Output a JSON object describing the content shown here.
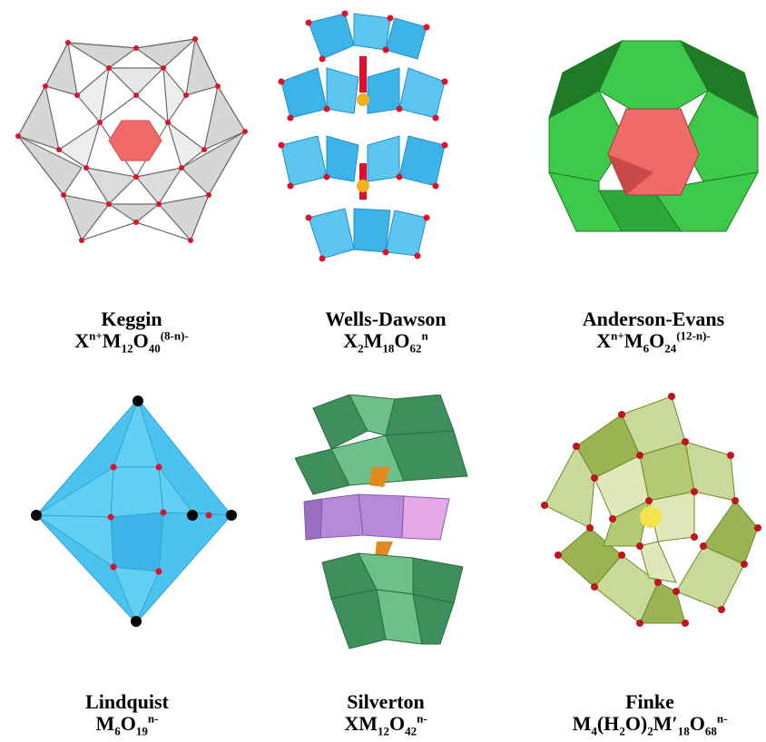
{
  "figure": {
    "structures": [
      {
        "name": "Keggin",
        "formula": [
          {
            "t": "X"
          },
          {
            "t": "n+",
            "s": "sup"
          },
          {
            "t": "M"
          },
          {
            "t": "12",
            "s": "sub"
          },
          {
            "t": "O"
          },
          {
            "t": "40",
            "s": "sub"
          },
          {
            "t": "(8-n)-",
            "s": "sup"
          }
        ],
        "colors": {
          "poly": "#d6d6d6",
          "center": "#f06a6a",
          "node": "#e0102a",
          "edge": "#6a6a6a"
        }
      },
      {
        "name": "Wells-Dawson",
        "formula": [
          {
            "t": "X"
          },
          {
            "t": "2",
            "s": "sub"
          },
          {
            "t": "M"
          },
          {
            "t": "18",
            "s": "sub"
          },
          {
            "t": "O"
          },
          {
            "t": "62",
            "s": "sub"
          },
          {
            "t": "n",
            "s": "sup"
          }
        ],
        "colors": {
          "poly": "#3cb4e8",
          "dark": "#1f8fc7",
          "node": "#e0102a",
          "hetero": "#f2b21d"
        }
      },
      {
        "name": "Anderson-Evans",
        "formula": [
          {
            "t": "X"
          },
          {
            "t": "n+",
            "s": "sup"
          },
          {
            "t": "M"
          },
          {
            "t": "6",
            "s": "sub"
          },
          {
            "t": "O"
          },
          {
            "t": "24",
            "s": "sub"
          },
          {
            "t": "(12-n)-",
            "s": "sup"
          }
        ],
        "colors": {
          "poly": "#3dc94a",
          "dark": "#1e7a25",
          "center": "#f06a6a"
        }
      },
      {
        "name": "Lindquist",
        "formula": [
          {
            "t": "M"
          },
          {
            "t": "6",
            "s": "sub"
          },
          {
            "t": "O"
          },
          {
            "t": "19",
            "s": "sub"
          },
          {
            "t": "n-",
            "s": "sup"
          }
        ],
        "colors": {
          "poly": "#4cc3ee",
          "dark": "#2aa6d8",
          "node": "#e0102a",
          "vertex": "#000000"
        }
      },
      {
        "name": "Silverton",
        "formula": [
          {
            "t": "XM"
          },
          {
            "t": "12",
            "s": "sub"
          },
          {
            "t": "O"
          },
          {
            "t": "42",
            "s": "sub"
          },
          {
            "t": "n-",
            "s": "sup"
          }
        ],
        "colors": {
          "poly": "#3f8f5c",
          "light": "#6fbf8a",
          "middle": "#b58ad9",
          "middle_light": "#e5a8e8",
          "hetero": "#e08a1e"
        }
      },
      {
        "name": "Finke",
        "formula": [
          {
            "t": "M"
          },
          {
            "t": "4",
            "s": "sub"
          },
          {
            "t": "(H"
          },
          {
            "t": "2",
            "s": "sub"
          },
          {
            "t": "O)"
          },
          {
            "t": "2",
            "s": "sub"
          },
          {
            "t": "M′"
          },
          {
            "t": "18",
            "s": "sub"
          },
          {
            "t": "O"
          },
          {
            "t": "68",
            "s": "sub"
          },
          {
            "t": "n-",
            "s": "sup"
          }
        ],
        "colors": {
          "poly": "#c9d99a",
          "dark": "#6e8a2a",
          "node": "#c0141e",
          "center": "#f4e34a"
        }
      }
    ]
  }
}
